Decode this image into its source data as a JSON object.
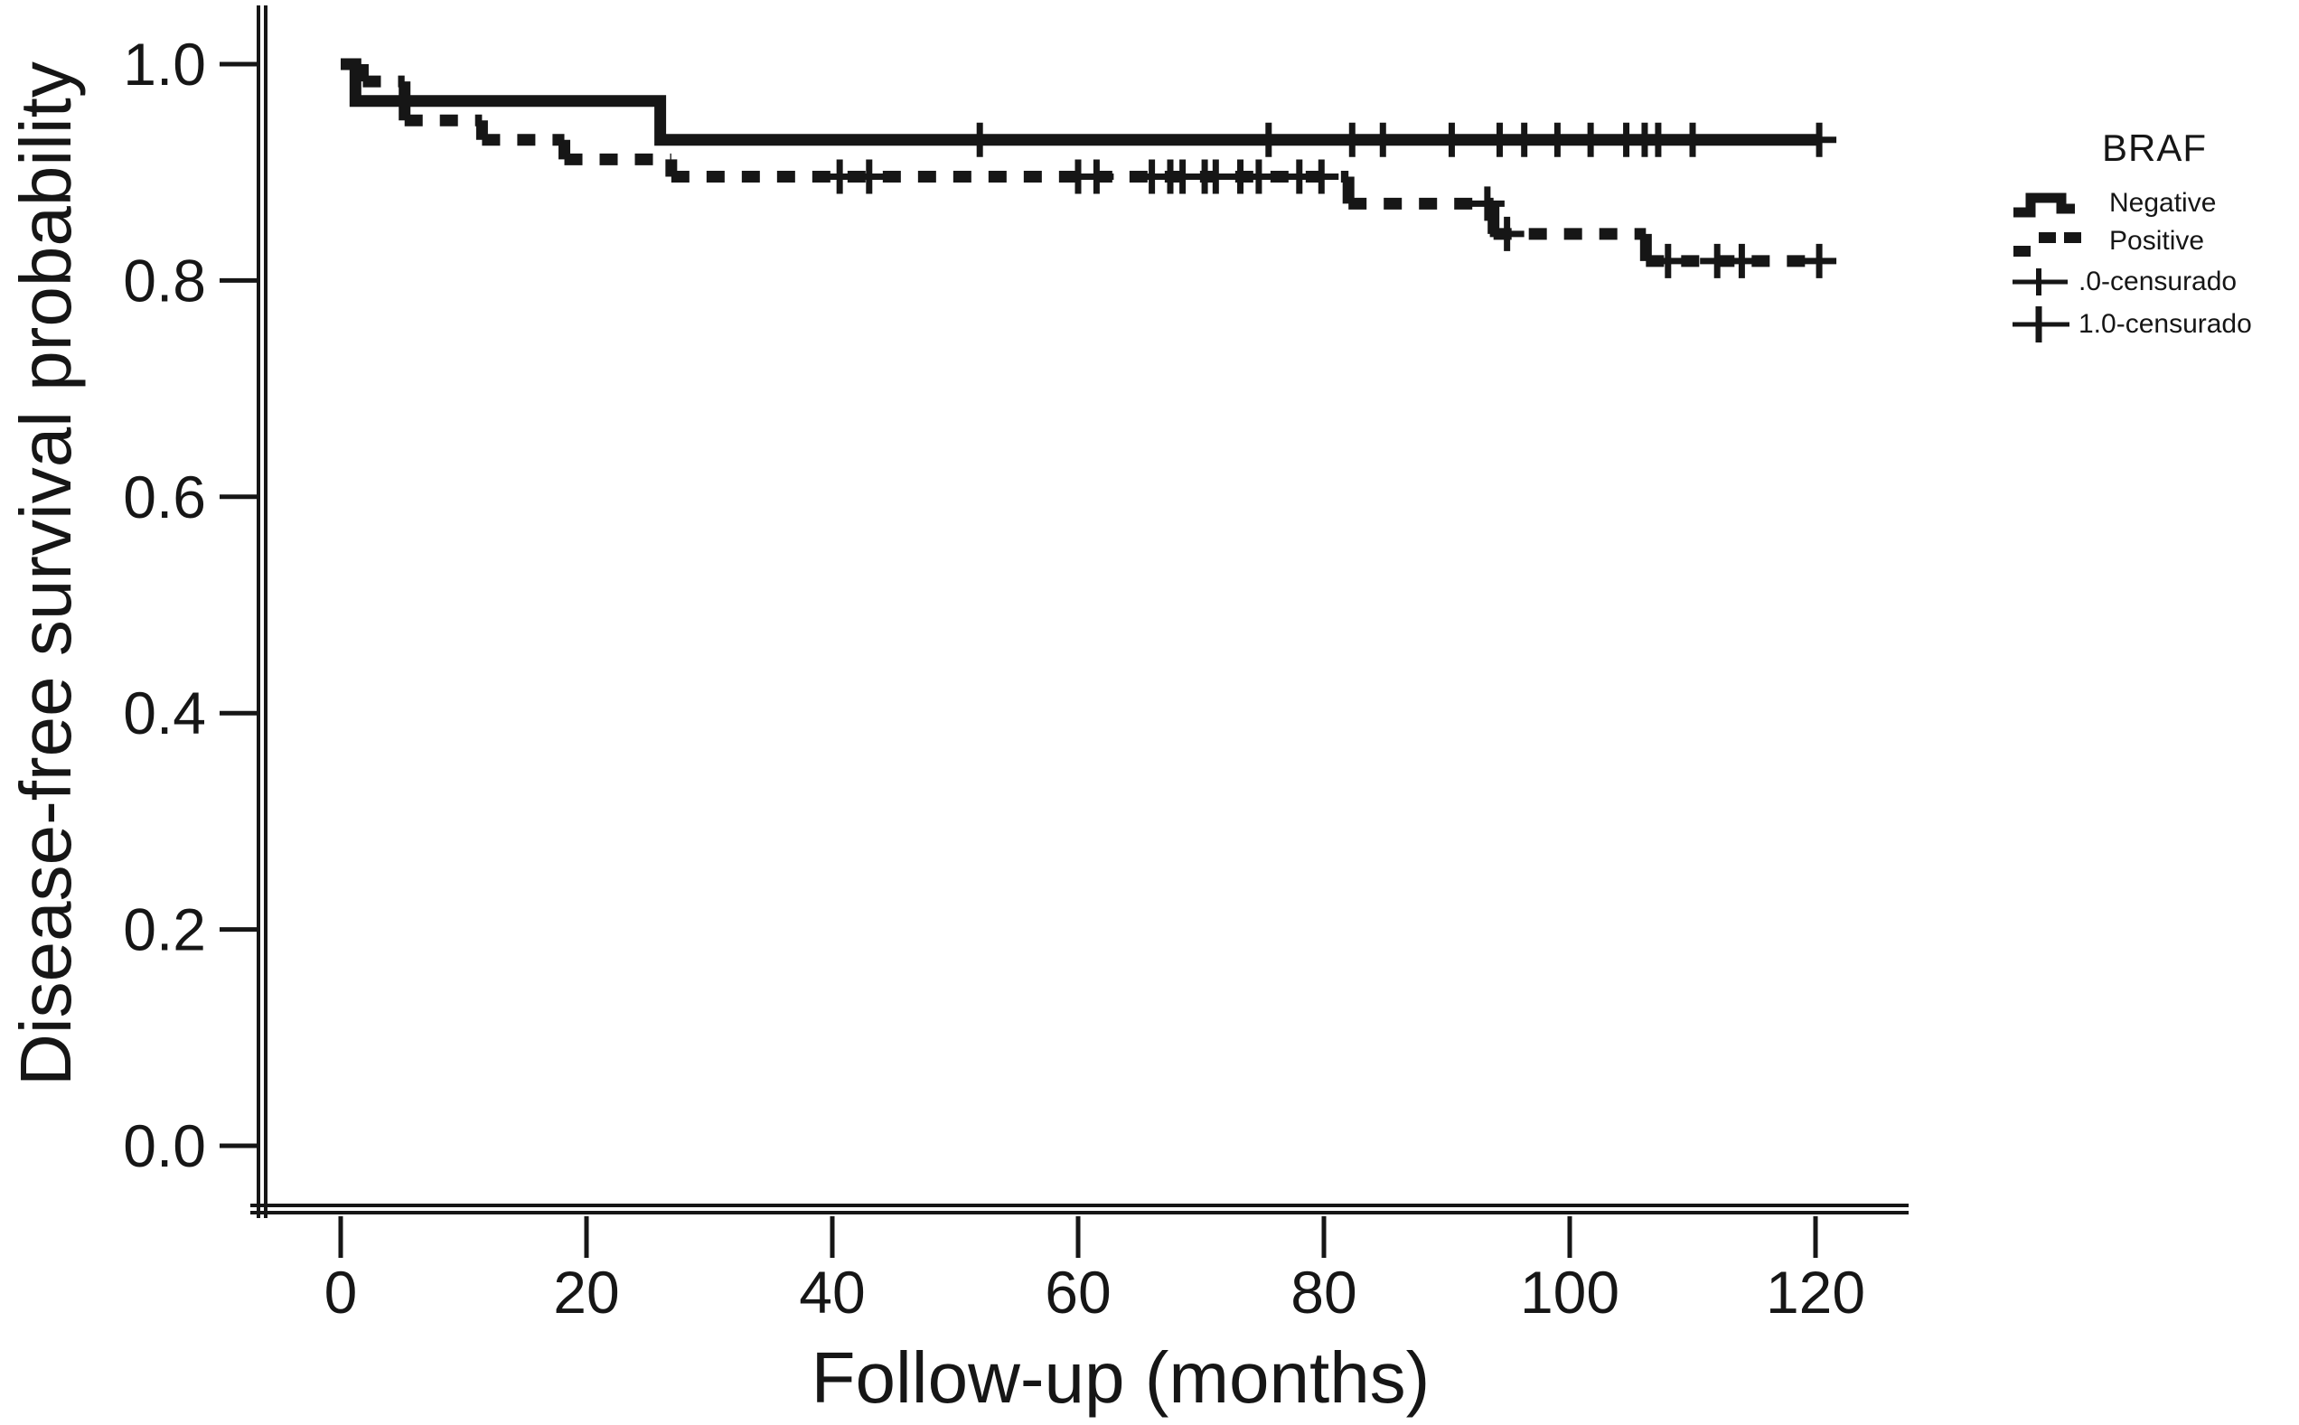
{
  "page": {
    "background_color": "#ffffff",
    "foreground_color": "#161616"
  },
  "x_axis": {
    "title": "Follow-up (months)",
    "tick_labels": [
      "0",
      "20",
      "40",
      "60",
      "80",
      "100",
      "120"
    ]
  },
  "y_axis": {
    "title": "Disease-free survival probability",
    "tick_labels": [
      "1.0",
      "0.8",
      "0.6",
      "0.4",
      "0.2",
      "0.0"
    ]
  },
  "legend": {
    "title": "BRAF",
    "entries": [
      {
        "label": "Negative",
        "symbol": "solid-step-line"
      },
      {
        "label": "Positive",
        "symbol": "dashed-step-line"
      },
      {
        "label": ".0-censurado",
        "symbol": "plus-on-line"
      },
      {
        "label": "1.0-censurado",
        "symbol": "plus-on-line"
      }
    ]
  },
  "chart_data": {
    "type": "line",
    "subtype": "kaplan_meier_step",
    "title": "",
    "xlabel": "Follow-up (months)",
    "ylabel": "Disease-free survival probability",
    "xlim": [
      0,
      127
    ],
    "ylim": [
      -0.05,
      1.05
    ],
    "x_ticks": [
      0,
      20,
      40,
      60,
      80,
      100,
      120
    ],
    "y_ticks": [
      1.0,
      0.8,
      0.6,
      0.4,
      0.2,
      0.0
    ],
    "y_tick_labels": [
      "1.0",
      "0.8",
      "0.6",
      "0.4",
      "0.2",
      "0.0"
    ],
    "grid": false,
    "legend_title": "BRAF",
    "legend_position": "right",
    "censor_marker": "plus",
    "series": [
      {
        "name": "Negative",
        "line_style": "solid",
        "color": "#161616",
        "steps": [
          [
            0,
            1.0
          ],
          [
            1.2,
            1.0
          ],
          [
            1.2,
            0.966
          ],
          [
            26,
            0.966
          ],
          [
            26,
            0.93
          ],
          [
            120.5,
            0.93
          ]
        ],
        "censored": [
          [
            52,
            0.93
          ],
          [
            75.5,
            0.93
          ],
          [
            82.3,
            0.93
          ],
          [
            84.8,
            0.93
          ],
          [
            90.4,
            0.93
          ],
          [
            94.3,
            0.93
          ],
          [
            96.3,
            0.93
          ],
          [
            99,
            0.93
          ],
          [
            101.7,
            0.93
          ],
          [
            104.6,
            0.93
          ],
          [
            106.1,
            0.93
          ],
          [
            107.2,
            0.93
          ],
          [
            110,
            0.93
          ],
          [
            120.3,
            0.93
          ]
        ]
      },
      {
        "name": "Positive",
        "line_style": "dashed",
        "color": "#161616",
        "steps": [
          [
            0,
            1.0
          ],
          [
            1.8,
            1.0
          ],
          [
            1.8,
            0.984
          ],
          [
            5.2,
            0.984
          ],
          [
            5.2,
            0.948
          ],
          [
            11.5,
            0.948
          ],
          [
            11.5,
            0.93
          ],
          [
            18.2,
            0.93
          ],
          [
            18.2,
            0.912
          ],
          [
            26.9,
            0.912
          ],
          [
            26.9,
            0.896
          ],
          [
            82,
            0.896
          ],
          [
            82,
            0.871
          ],
          [
            93.8,
            0.871
          ],
          [
            93.8,
            0.843
          ],
          [
            106.2,
            0.843
          ],
          [
            106.2,
            0.818
          ],
          [
            120.5,
            0.818
          ]
        ],
        "censored": [
          [
            40.6,
            0.896
          ],
          [
            43,
            0.896
          ],
          [
            60,
            0.896
          ],
          [
            61.5,
            0.896
          ],
          [
            66,
            0.896
          ],
          [
            67.5,
            0.896
          ],
          [
            68.5,
            0.896
          ],
          [
            70.3,
            0.896
          ],
          [
            71.2,
            0.896
          ],
          [
            73.2,
            0.896
          ],
          [
            74.7,
            0.896
          ],
          [
            78,
            0.896
          ],
          [
            79.8,
            0.896
          ],
          [
            93.3,
            0.871
          ],
          [
            94.9,
            0.843
          ],
          [
            108,
            0.818
          ],
          [
            112,
            0.818
          ],
          [
            114,
            0.818
          ],
          [
            120.3,
            0.818
          ]
        ]
      }
    ]
  }
}
